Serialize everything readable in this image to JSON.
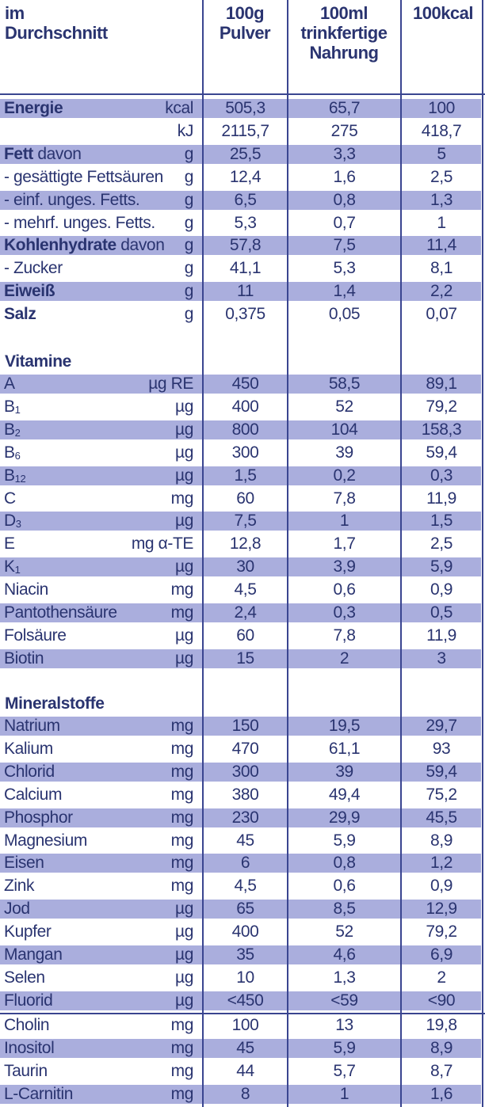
{
  "header": {
    "label_line1": "im",
    "label_line2": "Durchschnitt",
    "col1_line1": "100g",
    "col1_line2": "Pulver",
    "col2_line1": "100ml",
    "col2_line2": "trinkfertige",
    "col2_line3": "Nahrung",
    "col3_line1": "100kcal"
  },
  "sections": {
    "vitamine": "Vitamine",
    "mineralstoffe": "Mineralstoffe"
  },
  "colors": {
    "band": "#aaaedd",
    "lines": "#3a4590",
    "text": "#2a3470"
  },
  "naehrwerte": [
    {
      "bold": "Energie",
      "label": "",
      "unit": "kcal",
      "v1": "505,3",
      "v2": "65,7",
      "v3": "100",
      "band": true
    },
    {
      "bold": "",
      "label": "",
      "unit": "kJ",
      "v1": "2115,7",
      "v2": "275",
      "v3": "418,7",
      "band": false
    },
    {
      "bold": "Fett",
      "label": " davon",
      "unit": "g",
      "v1": "25,5",
      "v2": "3,3",
      "v3": "5",
      "band": true
    },
    {
      "bold": "",
      "label": "- gesättigte Fettsäuren",
      "unit": "g",
      "v1": "12,4",
      "v2": "1,6",
      "v3": "2,5",
      "band": false
    },
    {
      "bold": "",
      "label": "- einf. unges. Fetts.",
      "unit": "g",
      "v1": "6,5",
      "v2": "0,8",
      "v3": "1,3",
      "band": true
    },
    {
      "bold": "",
      "label": "- mehrf. unges. Fetts.",
      "unit": "g",
      "v1": "5,3",
      "v2": "0,7",
      "v3": "1",
      "band": false
    },
    {
      "bold": "Kohlenhydrate",
      "label": " davon",
      "unit": "g",
      "v1": "57,8",
      "v2": "7,5",
      "v3": "11,4",
      "band": true
    },
    {
      "bold": "",
      "label": "- Zucker",
      "unit": "g",
      "v1": "41,1",
      "v2": "5,3",
      "v3": "8,1",
      "band": false
    },
    {
      "bold": "Eiweiß",
      "label": "",
      "unit": "g",
      "v1": "11",
      "v2": "1,4",
      "v3": "2,2",
      "band": true
    },
    {
      "bold": "Salz",
      "label": "",
      "unit": "g",
      "v1": "0,375",
      "v2": "0,05",
      "v3": "0,07",
      "band": false
    }
  ],
  "vitamine": [
    {
      "label": "A",
      "sub": "",
      "unit": "µg RE",
      "v1": "450",
      "v2": "58,5",
      "v3": "89,1",
      "band": true
    },
    {
      "label": "B",
      "sub": "1",
      "unit": "µg",
      "v1": "400",
      "v2": "52",
      "v3": "79,2",
      "band": false
    },
    {
      "label": "B",
      "sub": "2",
      "unit": "µg",
      "v1": "800",
      "v2": "104",
      "v3": "158,3",
      "band": true
    },
    {
      "label": "B",
      "sub": "6",
      "unit": "µg",
      "v1": "300",
      "v2": "39",
      "v3": "59,4",
      "band": false
    },
    {
      "label": "B",
      "sub": "12",
      "unit": "µg",
      "v1": "1,5",
      "v2": "0,2",
      "v3": "0,3",
      "band": true
    },
    {
      "label": "C",
      "sub": "",
      "unit": "mg",
      "v1": "60",
      "v2": "7,8",
      "v3": "11,9",
      "band": false
    },
    {
      "label": "D",
      "sub": "3",
      "unit": "µg",
      "v1": "7,5",
      "v2": "1",
      "v3": "1,5",
      "band": true
    },
    {
      "label": "E",
      "sub": "",
      "unit": "mg α-TE",
      "v1": "12,8",
      "v2": "1,7",
      "v3": "2,5",
      "band": false
    },
    {
      "label": "K",
      "sub": "1",
      "unit": "µg",
      "v1": "30",
      "v2": "3,9",
      "v3": "5,9",
      "band": true
    },
    {
      "label": "Niacin",
      "sub": "",
      "unit": "mg",
      "v1": "4,5",
      "v2": "0,6",
      "v3": "0,9",
      "band": false
    },
    {
      "label": "Pantothensäure",
      "sub": "",
      "unit": "mg",
      "v1": "2,4",
      "v2": "0,3",
      "v3": "0,5",
      "band": true
    },
    {
      "label": "Folsäure",
      "sub": "",
      "unit": "µg",
      "v1": "60",
      "v2": "7,8",
      "v3": "11,9",
      "band": false
    },
    {
      "label": "Biotin",
      "sub": "",
      "unit": "µg",
      "v1": "15",
      "v2": "2",
      "v3": "3",
      "band": true
    }
  ],
  "mineralstoffe": [
    {
      "label": "Natrium",
      "unit": "mg",
      "v1": "150",
      "v2": "19,5",
      "v3": "29,7",
      "band": true
    },
    {
      "label": "Kalium",
      "unit": "mg",
      "v1": "470",
      "v2": "61,1",
      "v3": "93",
      "band": false
    },
    {
      "label": "Chlorid",
      "unit": "mg",
      "v1": "300",
      "v2": "39",
      "v3": "59,4",
      "band": true
    },
    {
      "label": "Calcium",
      "unit": "mg",
      "v1": "380",
      "v2": "49,4",
      "v3": "75,2",
      "band": false
    },
    {
      "label": "Phosphor",
      "unit": "mg",
      "v1": "230",
      "v2": "29,9",
      "v3": "45,5",
      "band": true
    },
    {
      "label": "Magnesium",
      "unit": "mg",
      "v1": "45",
      "v2": "5,9",
      "v3": "8,9",
      "band": false
    },
    {
      "label": "Eisen",
      "unit": "mg",
      "v1": "6",
      "v2": "0,8",
      "v3": "1,2",
      "band": true
    },
    {
      "label": "Zink",
      "unit": "mg",
      "v1": "4,5",
      "v2": "0,6",
      "v3": "0,9",
      "band": false
    },
    {
      "label": "Jod",
      "unit": "µg",
      "v1": "65",
      "v2": "8,5",
      "v3": "12,9",
      "band": true
    },
    {
      "label": "Kupfer",
      "unit": "µg",
      "v1": "400",
      "v2": "52",
      "v3": "79,2",
      "band": false
    },
    {
      "label": "Mangan",
      "unit": "µg",
      "v1": "35",
      "v2": "4,6",
      "v3": "6,9",
      "band": true
    },
    {
      "label": "Selen",
      "unit": "µg",
      "v1": "10",
      "v2": "1,3",
      "v3": "2",
      "band": false
    },
    {
      "label": "Fluorid",
      "unit": "µg",
      "v1": "<450",
      "v2": "<59",
      "v3": "<90",
      "band": true
    }
  ],
  "sonstige": [
    {
      "label": "Cholin",
      "unit": "mg",
      "v1": "100",
      "v2": "13",
      "v3": "19,8",
      "band": false
    },
    {
      "label": "Inositol",
      "unit": "mg",
      "v1": "45",
      "v2": "5,9",
      "v3": "8,9",
      "band": true
    },
    {
      "label": "Taurin",
      "unit": "mg",
      "v1": "44",
      "v2": "5,7",
      "v3": "8,7",
      "band": false
    },
    {
      "label": "L-Carnitin",
      "unit": "mg",
      "v1": "8",
      "v2": "1",
      "v3": "1,6",
      "band": true
    }
  ]
}
